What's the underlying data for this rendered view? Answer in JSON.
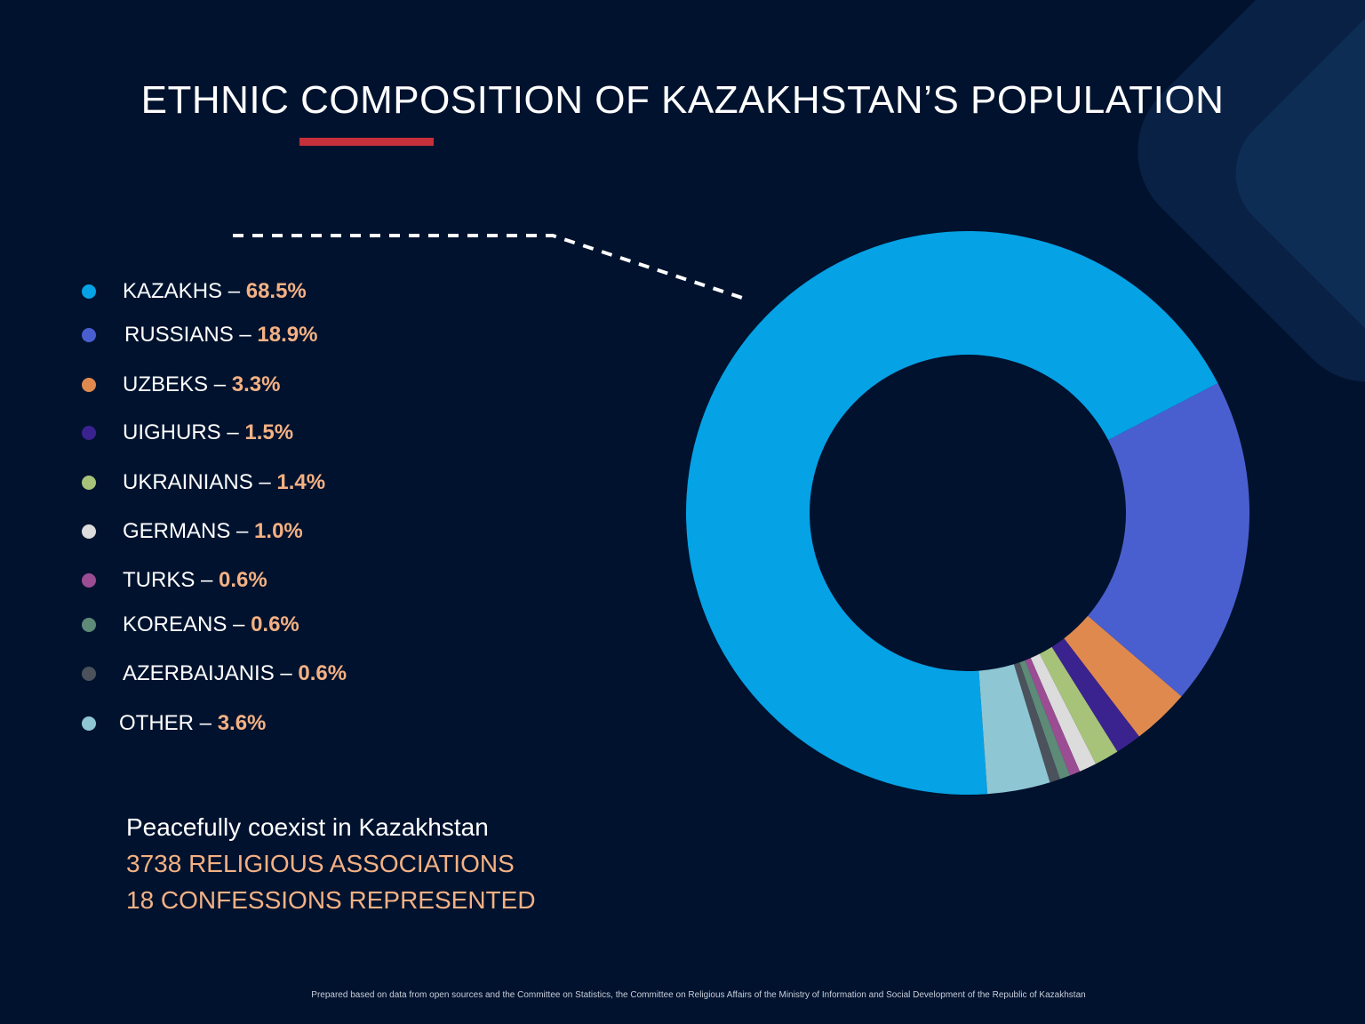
{
  "title": "ETHNIC COMPOSITION OF KAZAKHSTAN’S POPULATION",
  "colors": {
    "background": "#00122e",
    "accent_red": "#c6303a",
    "value_orange": "#f4b183"
  },
  "chart_data": {
    "type": "pie",
    "variant": "donut",
    "title": "ETHNIC COMPOSITION OF KAZAKHSTAN’S POPULATION",
    "legend_position": "left",
    "series": [
      {
        "name": "KAZAKHS",
        "value": 68.5,
        "label": "68.5%",
        "color": "#05a2e6"
      },
      {
        "name": "RUSSIANS",
        "value": 18.9,
        "label": "18.9%",
        "color": "#4a5fcf"
      },
      {
        "name": "UZBEKS",
        "value": 3.3,
        "label": "3.3%",
        "color": "#e0894f"
      },
      {
        "name": "UIGHURS",
        "value": 1.5,
        "label": "1.5%",
        "color": "#3a238f"
      },
      {
        "name": "UKRAINIANS",
        "value": 1.4,
        "label": "1.4%",
        "color": "#a7c37a"
      },
      {
        "name": "GERMANS",
        "value": 1.0,
        "label": "1.0%",
        "color": "#dcdcdc"
      },
      {
        "name": "TURKS",
        "value": 0.6,
        "label": "0.6%",
        "color": "#9b4d93"
      },
      {
        "name": "KOREANS",
        "value": 0.6,
        "label": "0.6%",
        "color": "#5e8a78"
      },
      {
        "name": "AZERBAIJANIS",
        "value": 0.6,
        "label": "0.6%",
        "color": "#4b525b"
      },
      {
        "name": "OTHER",
        "value": 3.6,
        "label": "3.6%",
        "color": "#8ec6d3"
      }
    ]
  },
  "footer": {
    "line1": "Peacefully coexist in Kazakhstan",
    "line2": "3738 RELIGIOUS ASSOCIATIONS",
    "line3": "18 CONFESSIONS REPRESENTED"
  },
  "source_note": "Prepared based on data from open sources  and the Committee on Statistics, the Committee on Religious Affairs of the Ministry of Information and Social Development of the Republic of Kazakhstan"
}
